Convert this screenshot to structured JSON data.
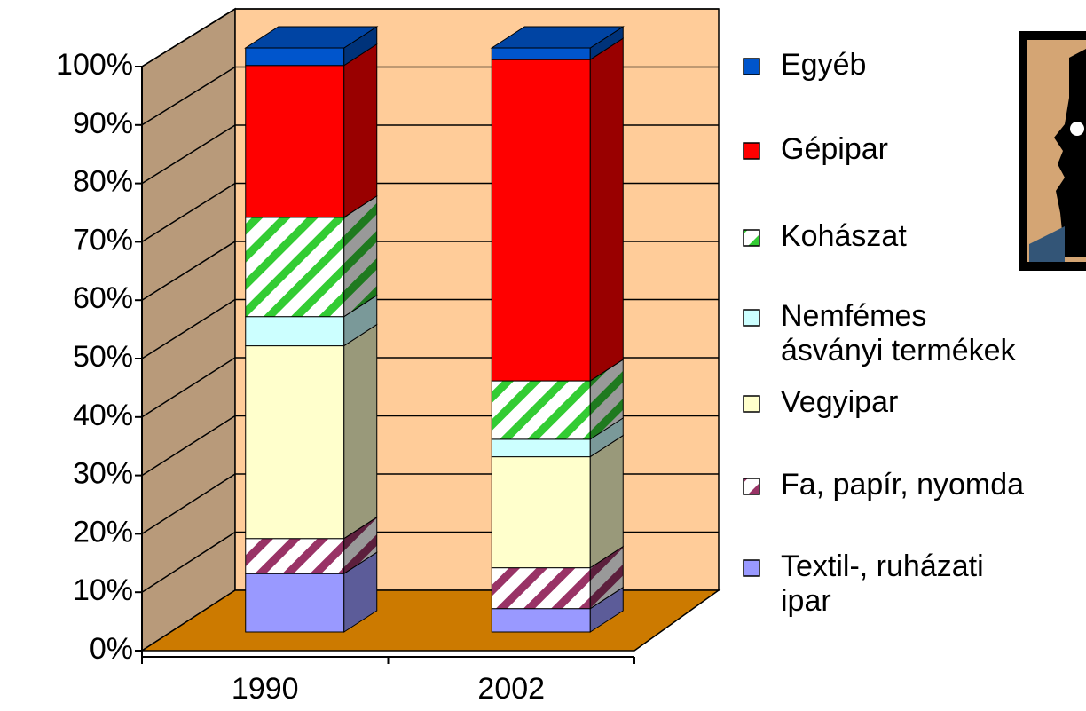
{
  "chart_data": {
    "type": "stacked-bar-3d",
    "categories": [
      "1990",
      "2002"
    ],
    "series": [
      {
        "name": "Textil-, ruházati\nipar",
        "color": "#9999ff",
        "values": [
          10,
          4
        ]
      },
      {
        "name": "Fa, papír, nyomda",
        "color": "#993366",
        "hatch": true,
        "values": [
          6,
          7
        ]
      },
      {
        "name": "Vegyipar",
        "color": "#ffffcc",
        "values": [
          33,
          19
        ]
      },
      {
        "name": "Nemfémes\násványi termékek",
        "color": "#ccffff",
        "values": [
          5,
          3
        ]
      },
      {
        "name": "Kohászat",
        "color": "#33cc33",
        "hatch": true,
        "values": [
          17,
          10
        ]
      },
      {
        "name": "Gépipar",
        "color": "#ff0000",
        "values": [
          26,
          55
        ]
      },
      {
        "name": "Egyéb",
        "color": "#0055cc",
        "values": [
          3,
          2
        ]
      }
    ],
    "ylim": [
      0,
      100
    ],
    "yticks": [
      {
        "value": 0,
        "label": "0%"
      },
      {
        "value": 10,
        "label": "10%"
      },
      {
        "value": 20,
        "label": "20%"
      },
      {
        "value": 30,
        "label": "30%"
      },
      {
        "value": 40,
        "label": "40%"
      },
      {
        "value": 50,
        "label": "50%"
      },
      {
        "value": 60,
        "label": "60%"
      },
      {
        "value": 70,
        "label": "70%"
      },
      {
        "value": 80,
        "label": "80%"
      },
      {
        "value": 90,
        "label": "90%"
      },
      {
        "value": 100,
        "label": "100%"
      }
    ],
    "grid": true
  }
}
